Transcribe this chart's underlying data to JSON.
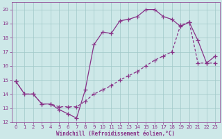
{
  "xlabel": "Windchill (Refroidissement éolien,°C)",
  "background_color": "#cde8e8",
  "grid_color": "#a0c8c8",
  "line_color": "#883388",
  "spine_color": "#883388",
  "xlim": [
    -0.5,
    23.5
  ],
  "ylim": [
    12,
    20.5
  ],
  "yticks": [
    12,
    13,
    14,
    15,
    16,
    17,
    18,
    19,
    20
  ],
  "xticks": [
    0,
    1,
    2,
    3,
    4,
    5,
    6,
    7,
    8,
    9,
    10,
    11,
    12,
    13,
    14,
    15,
    16,
    17,
    18,
    19,
    20,
    21,
    22,
    23
  ],
  "line1_x": [
    0,
    1,
    2,
    3,
    4,
    5,
    6,
    7,
    8,
    9,
    10,
    11,
    12,
    13,
    14,
    15,
    16,
    17,
    18,
    19,
    20,
    21,
    22,
    23
  ],
  "line1_y": [
    14.9,
    14.0,
    14.0,
    13.3,
    13.3,
    12.9,
    12.6,
    12.3,
    14.3,
    17.5,
    18.4,
    18.3,
    19.2,
    19.3,
    19.5,
    20.0,
    20.0,
    19.5,
    19.3,
    18.8,
    19.1,
    17.8,
    16.2,
    16.7
  ],
  "line2_x": [
    0,
    1,
    2,
    3,
    4,
    5,
    6,
    7,
    8,
    9,
    10,
    11,
    12,
    13,
    14,
    15,
    16,
    17,
    18,
    19,
    20,
    21,
    22,
    23
  ],
  "line2_y": [
    14.9,
    14.0,
    14.0,
    13.3,
    13.3,
    13.1,
    13.1,
    13.1,
    13.5,
    14.0,
    14.3,
    14.6,
    15.0,
    15.3,
    15.6,
    16.0,
    16.4,
    16.7,
    17.0,
    18.9,
    19.1,
    16.2,
    16.2,
    16.2
  ],
  "tick_labelsize": 5,
  "xlabel_fontsize": 5.5,
  "marker": "+",
  "markersize": 4,
  "linewidth": 0.9
}
